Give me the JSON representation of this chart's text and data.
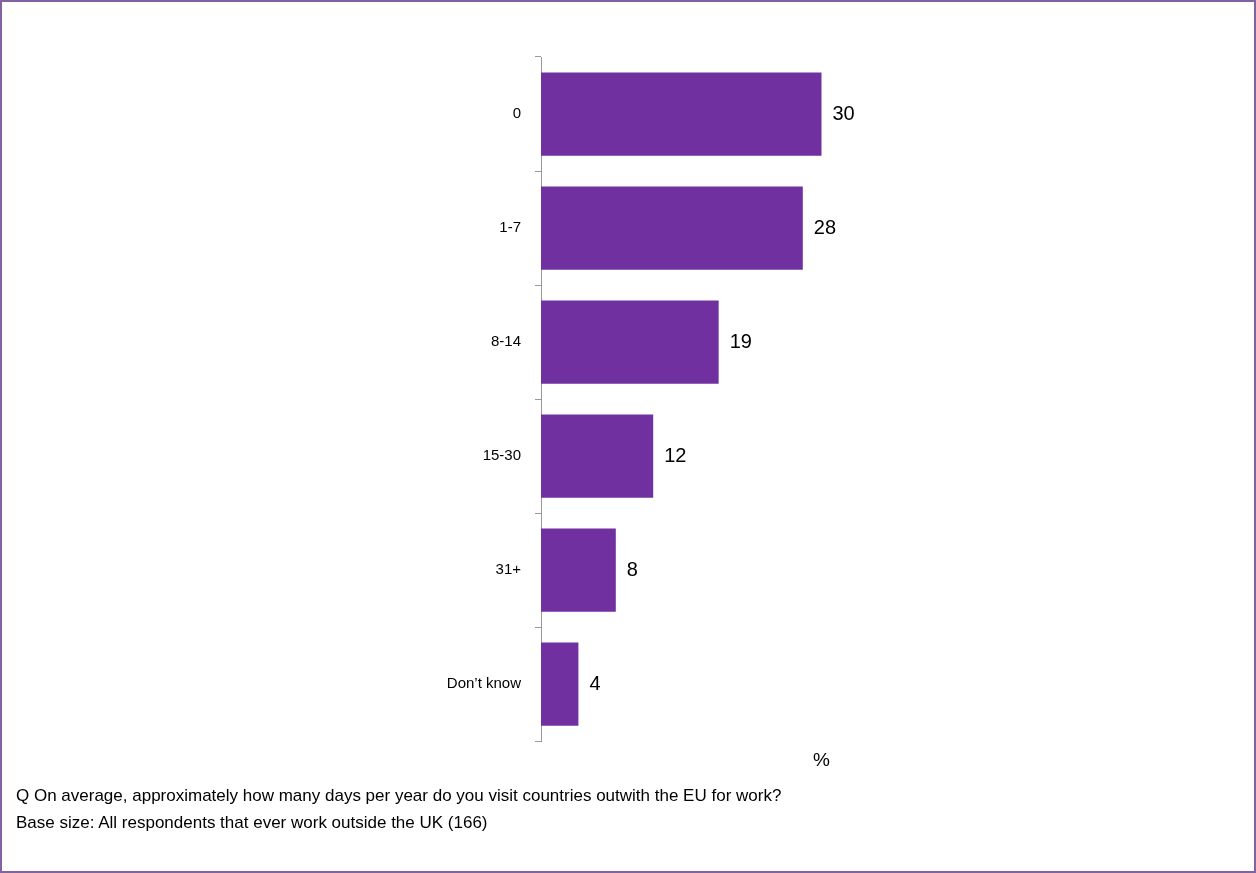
{
  "chart_data": {
    "type": "bar",
    "orientation": "horizontal",
    "categories": [
      "0",
      "1-7",
      "8-14",
      "15-30",
      "31+",
      "Don’t know"
    ],
    "values": [
      30,
      28,
      19,
      12,
      8,
      4
    ],
    "color": "#7030a0",
    "data_labels": true,
    "xlabel": "%",
    "grid": false,
    "legend": false,
    "annotations": [
      "Q  On average, approximately how many days per year do you visit countries outwith the EU for work?",
      "Base size: All respondents that ever work outside the UK (166)"
    ]
  }
}
